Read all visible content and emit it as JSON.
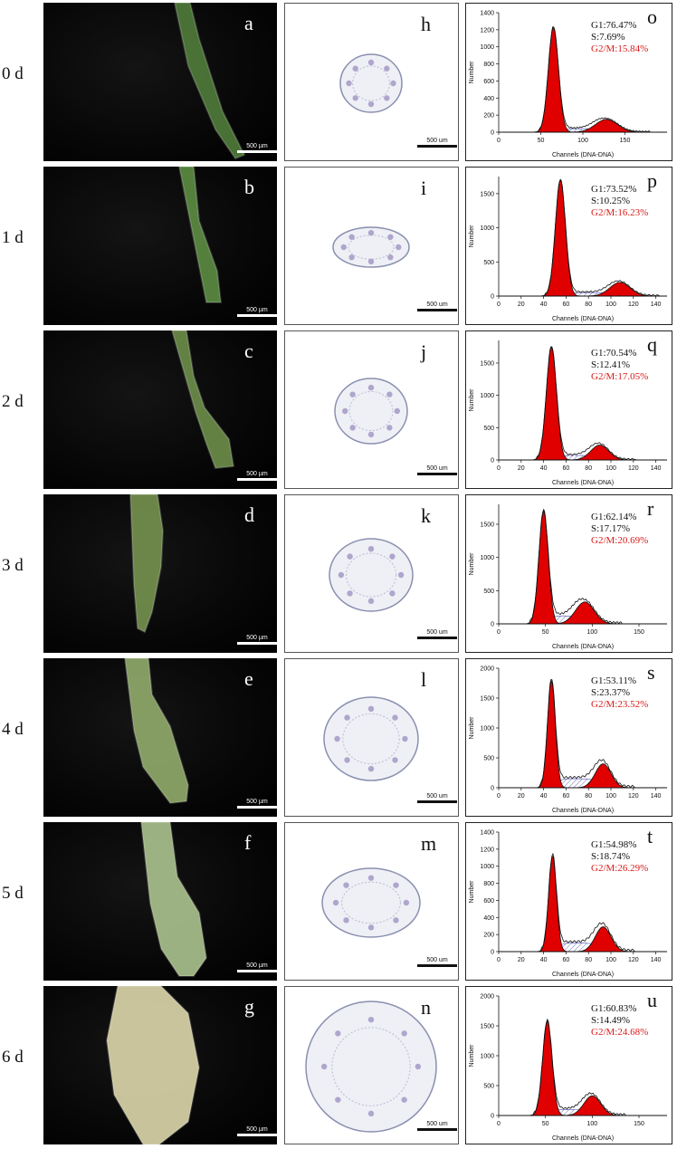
{
  "figure": {
    "scale_label_photo": "500 µm",
    "scale_label_section": "500 um",
    "colors": {
      "peak_fill": "#e00000",
      "g2m_text": "#d81b1b",
      "hatch": "#4a4aa8"
    }
  },
  "rows": [
    {
      "day": "0 d",
      "photo": "a",
      "section": "h",
      "hist": "o",
      "g1": "G1:76.47%",
      "s": "S:7.69%",
      "g2m": "G2/M:15.84%"
    },
    {
      "day": "1 d",
      "photo": "b",
      "section": "i",
      "hist": "p",
      "g1": "G1:73.52%",
      "s": "S:10.25%",
      "g2m": "G2/M:16.23%"
    },
    {
      "day": "2 d",
      "photo": "c",
      "section": "j",
      "hist": "q",
      "g1": "G1:70.54%",
      "s": "S:12.41%",
      "g2m": "G2/M:17.05%"
    },
    {
      "day": "3 d",
      "photo": "d",
      "section": "k",
      "hist": "r",
      "g1": "G1:62.14%",
      "s": "S:17.17%",
      "g2m": "G2/M:20.69%"
    },
    {
      "day": "4 d",
      "photo": "e",
      "section": "l",
      "hist": "s",
      "g1": "G1:53.11%",
      "s": "S:23.37%",
      "g2m": "G2/M:23.52%"
    },
    {
      "day": "5 d",
      "photo": "f",
      "section": "m",
      "hist": "t",
      "g1": "G1:54.98%",
      "s": "S:18.74%",
      "g2m": "G2/M:26.29%"
    },
    {
      "day": "6 d",
      "photo": "g",
      "section": "n",
      "hist": "u",
      "g1": "G1:60.83%",
      "s": "S:14.49%",
      "g2m": "G2/M:24.68%"
    }
  ],
  "chart_data": [
    {
      "type": "area",
      "panel": "o",
      "xlabel": "Channels (DNA-DNA)",
      "ylabel": "Number",
      "xlim": [
        0,
        200
      ],
      "xticks": [
        0,
        50,
        100,
        150
      ],
      "ylim": [
        0,
        1400
      ],
      "yticks": [
        0,
        200,
        400,
        600,
        800,
        1000,
        1200,
        1400
      ],
      "g1_peak": {
        "x": 65,
        "height": 1230,
        "sd": 6
      },
      "g2m_peak": {
        "x": 128,
        "height": 150,
        "sd": 13
      },
      "s_level": 40,
      "g1": 76.47,
      "s": 7.69,
      "g2m": 15.84
    },
    {
      "type": "area",
      "panel": "p",
      "xlabel": "Channels (DNA-DNA)",
      "ylabel": "Number",
      "xlim": [
        0,
        150
      ],
      "xticks": [
        0,
        20,
        40,
        60,
        80,
        100,
        120,
        140
      ],
      "ylim": [
        0,
        1750
      ],
      "yticks": [
        0,
        500,
        1000,
        1500
      ],
      "g1_peak": {
        "x": 55,
        "height": 1700,
        "sd": 4.5
      },
      "g2m_peak": {
        "x": 108,
        "height": 200,
        "sd": 9
      },
      "s_level": 50,
      "g1": 73.52,
      "s": 10.25,
      "g2m": 16.23
    },
    {
      "type": "area",
      "panel": "q",
      "xlabel": "Channels (DNA-DNA)",
      "ylabel": "Number",
      "xlim": [
        0,
        150
      ],
      "xticks": [
        0,
        20,
        40,
        60,
        80,
        100,
        120,
        140
      ],
      "ylim": [
        0,
        1850
      ],
      "yticks": [
        0,
        500,
        1000,
        1500
      ],
      "g1_peak": {
        "x": 47,
        "height": 1750,
        "sd": 4.5
      },
      "g2m_peak": {
        "x": 90,
        "height": 230,
        "sd": 8
      },
      "s_level": 70,
      "g1": 70.54,
      "s": 12.41,
      "g2m": 17.05
    },
    {
      "type": "area",
      "panel": "r",
      "xlabel": "Channels (DNA-DNA)",
      "ylabel": "Number",
      "xlim": [
        0,
        180
      ],
      "xticks": [
        0,
        50,
        100,
        150
      ],
      "ylim": [
        0,
        1800
      ],
      "yticks": [
        0,
        500,
        1000,
        1500
      ],
      "g1_peak": {
        "x": 48,
        "height": 1700,
        "sd": 5
      },
      "g2m_peak": {
        "x": 92,
        "height": 330,
        "sd": 10
      },
      "s_level": 120,
      "g1": 62.14,
      "s": 17.17,
      "g2m": 20.69
    },
    {
      "type": "area",
      "panel": "s",
      "xlabel": "Channels (DNA-DNA)",
      "ylabel": "Number",
      "xlim": [
        0,
        150
      ],
      "xticks": [
        0,
        20,
        40,
        60,
        80,
        100,
        120,
        140
      ],
      "ylim": [
        0,
        2000
      ],
      "yticks": [
        0,
        500,
        1000,
        1500,
        2000
      ],
      "g1_peak": {
        "x": 47,
        "height": 1800,
        "sd": 3.5
      },
      "g2m_peak": {
        "x": 93,
        "height": 400,
        "sd": 7
      },
      "s_level": 150,
      "g1": 53.11,
      "s": 23.37,
      "g2m": 23.52
    },
    {
      "type": "area",
      "panel": "t",
      "xlabel": "Channels (DNA-DNA)",
      "ylabel": "Number",
      "xlim": [
        0,
        150
      ],
      "xticks": [
        0,
        20,
        40,
        60,
        80,
        100,
        120,
        140
      ],
      "ylim": [
        0,
        1400
      ],
      "yticks": [
        0,
        200,
        400,
        600,
        800,
        1000,
        1200,
        1400
      ],
      "g1_peak": {
        "x": 48,
        "height": 1120,
        "sd": 3.5
      },
      "g2m_peak": {
        "x": 93,
        "height": 290,
        "sd": 7
      },
      "s_level": 100,
      "g1": 54.98,
      "s": 18.74,
      "g2m": 26.29
    },
    {
      "type": "area",
      "panel": "u",
      "xlabel": "Channels (DNA-DNA)",
      "ylabel": "Number",
      "xlim": [
        0,
        180
      ],
      "xticks": [
        0,
        50,
        100,
        150
      ],
      "ylim": [
        0,
        2000
      ],
      "yticks": [
        0,
        500,
        1000,
        1500,
        2000
      ],
      "g1_peak": {
        "x": 52,
        "height": 1580,
        "sd": 5
      },
      "g2m_peak": {
        "x": 100,
        "height": 330,
        "sd": 9
      },
      "s_level": 100,
      "g1": 60.83,
      "s": 14.49,
      "g2m": 24.68
    }
  ]
}
